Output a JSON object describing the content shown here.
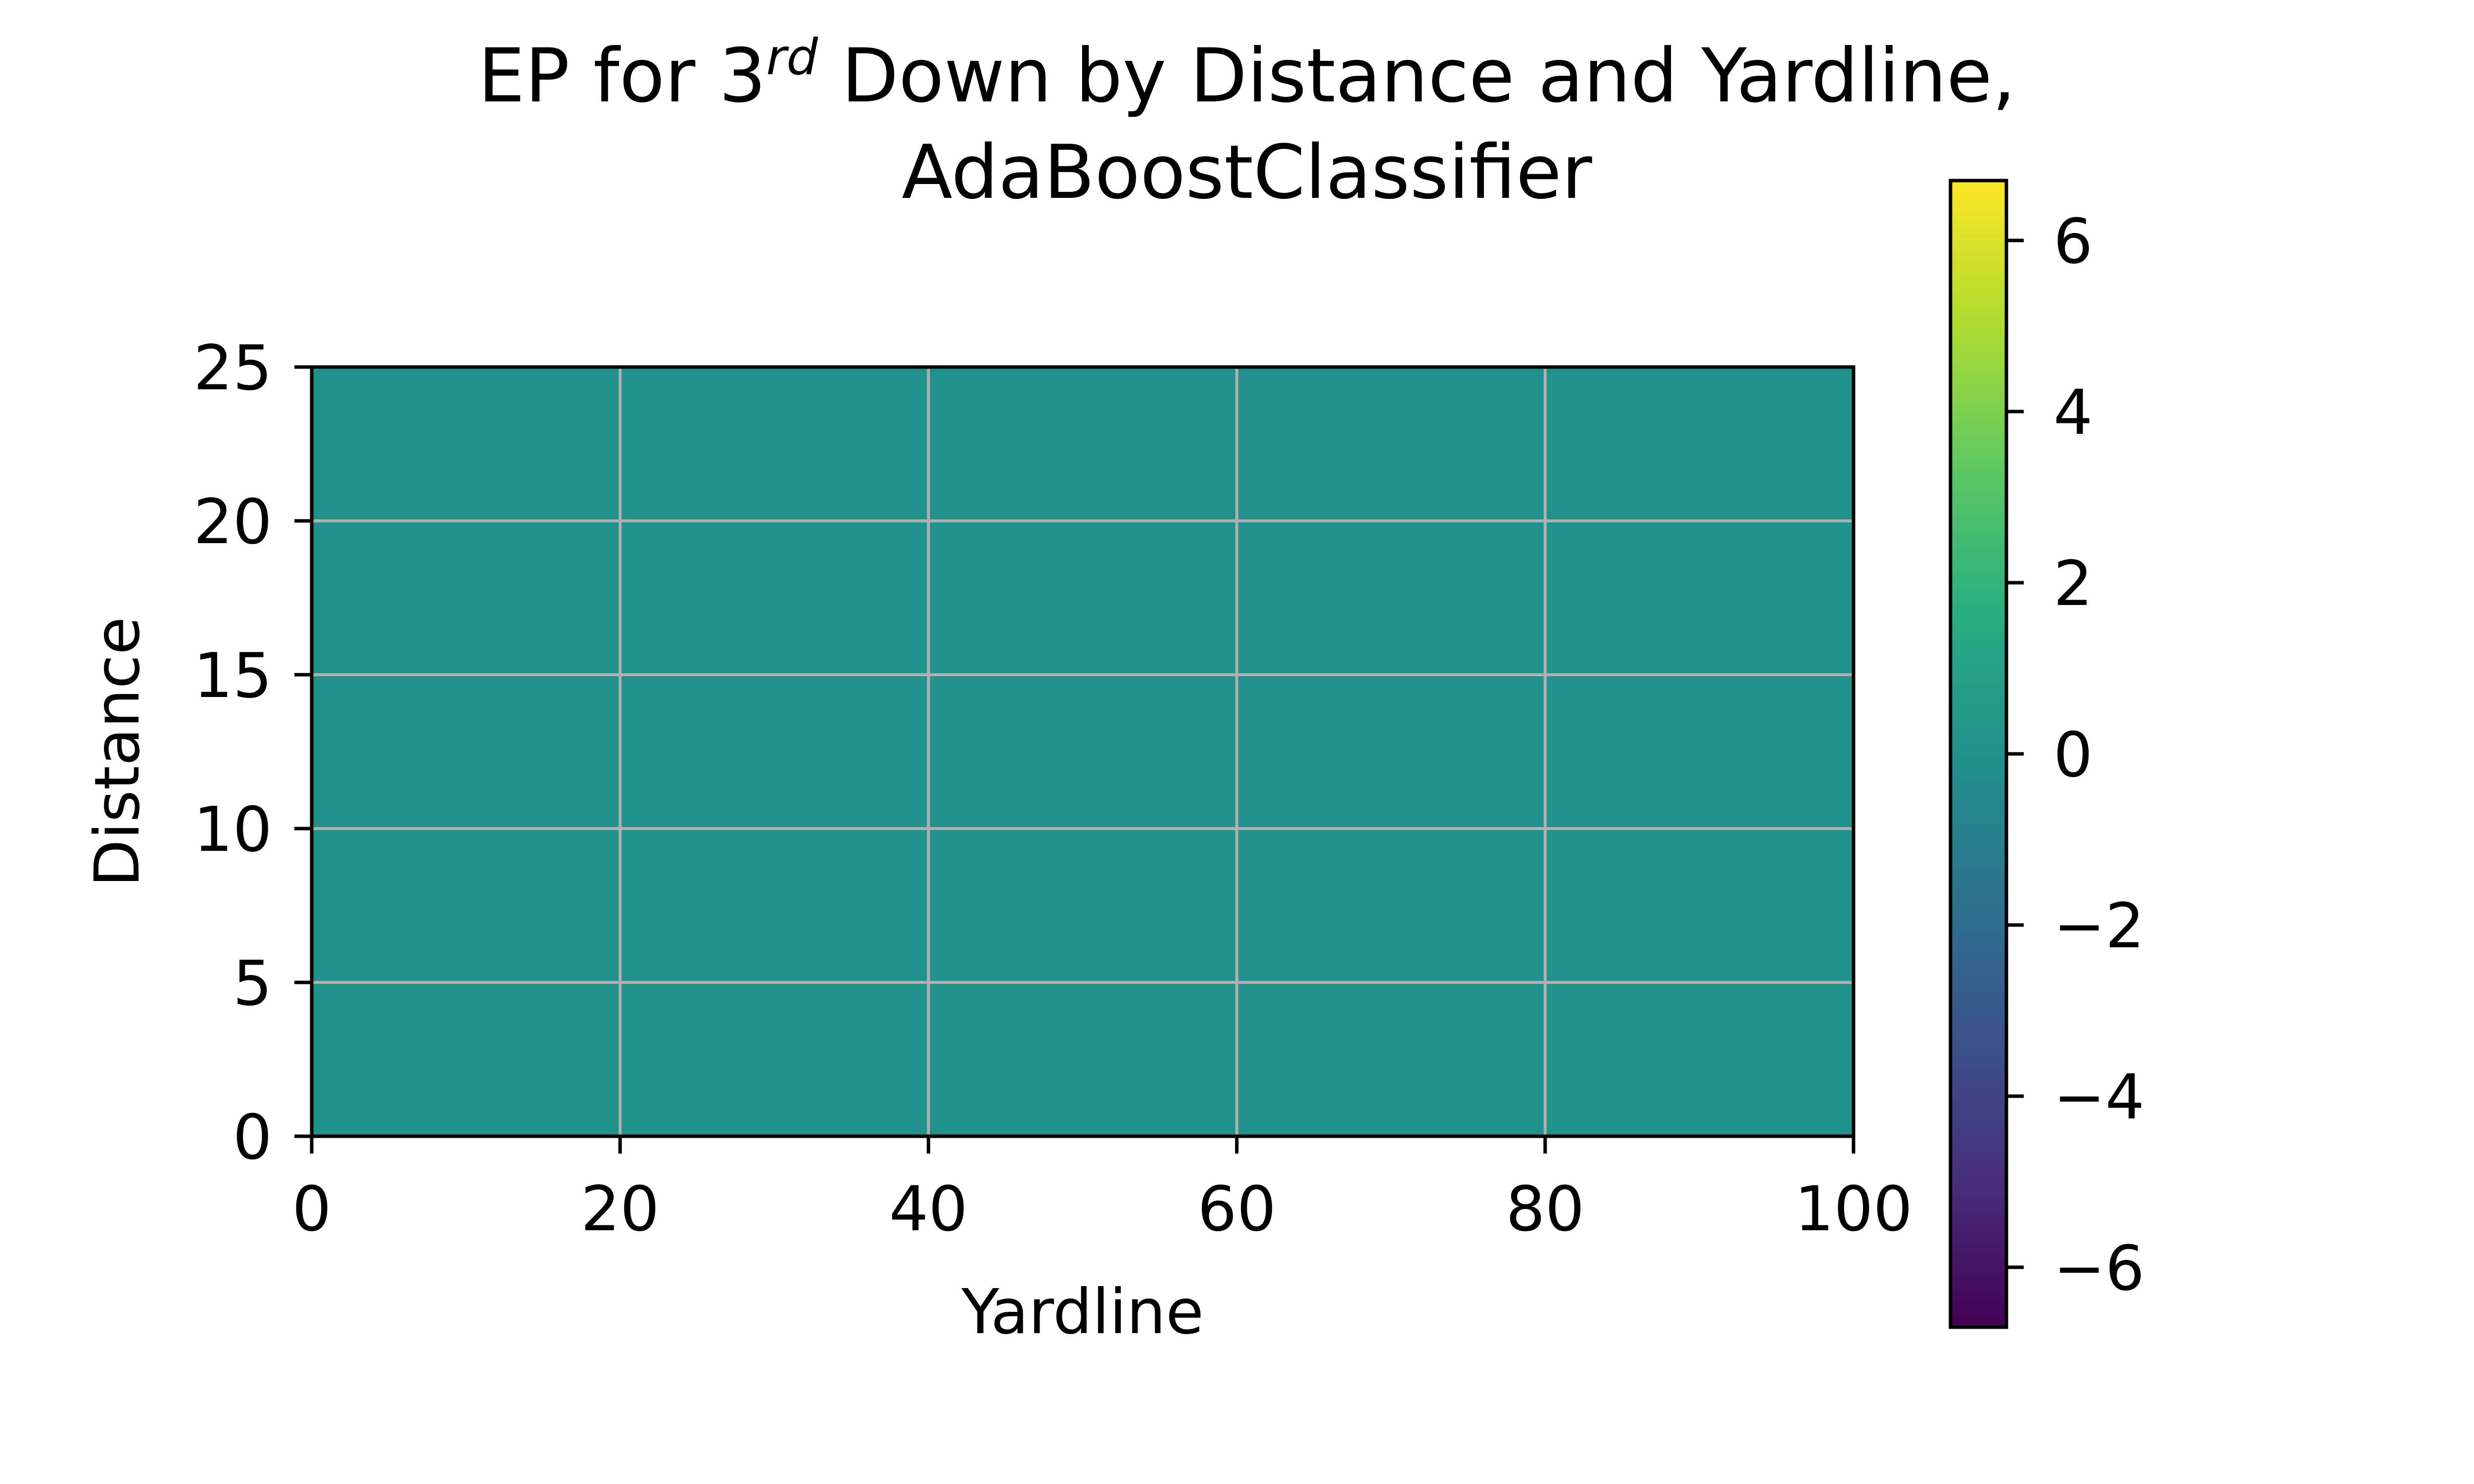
{
  "chart_data": {
    "type": "heatmap",
    "title_line1_before": "EP for 3",
    "title_superscript": "rd",
    "title_line1_after": " Down by Distance and Yardline,",
    "title_line2": "AdaBoostClassifier",
    "xlabel": "Yardline",
    "ylabel": "Distance",
    "xlim": [
      0,
      100
    ],
    "ylim": [
      0,
      25
    ],
    "x_ticks": [
      0,
      20,
      40,
      60,
      80,
      100
    ],
    "y_ticks": [
      0,
      5,
      10,
      15,
      20,
      25
    ],
    "grid": true,
    "value": 0,
    "colorbar": {
      "range": [
        -6.7,
        6.7
      ],
      "ticks": [
        6,
        4,
        2,
        0,
        -2,
        -4,
        -6
      ],
      "tick_labels": [
        "6",
        "4",
        "2",
        "0",
        "−2",
        "−4",
        "−6"
      ],
      "colormap": "viridis"
    },
    "colors": {
      "heatmap_fill": "#21918c",
      "grid": "#b0b0b0",
      "colormap_stops": [
        "#440154",
        "#472d7b",
        "#3b528b",
        "#2c728e",
        "#21918c",
        "#28ae80",
        "#5ec962",
        "#addc30",
        "#fde725"
      ]
    }
  }
}
